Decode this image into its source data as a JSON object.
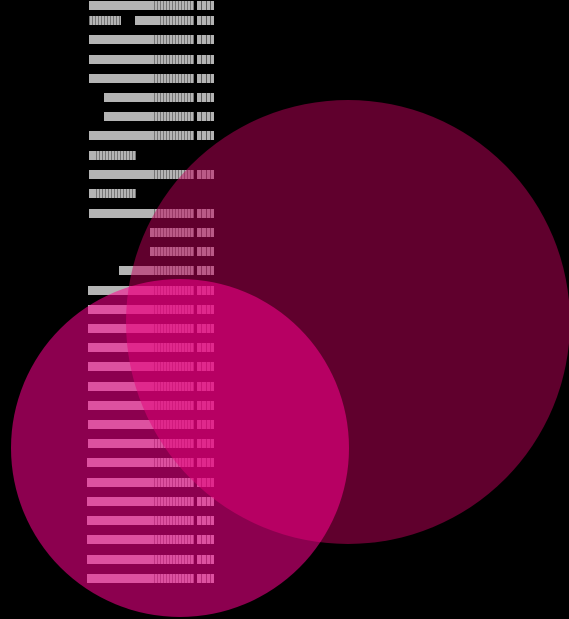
{
  "colors": {
    "background": "#000000",
    "circle_large": "#c0005a",
    "circle_small": "#ff0090",
    "bar_fill": "#b4b4b4",
    "bar_stripe": "#ffffff"
  },
  "shapes": [
    "large-magenta-circle",
    "small-pink-circle",
    "striped-bar-column"
  ]
}
